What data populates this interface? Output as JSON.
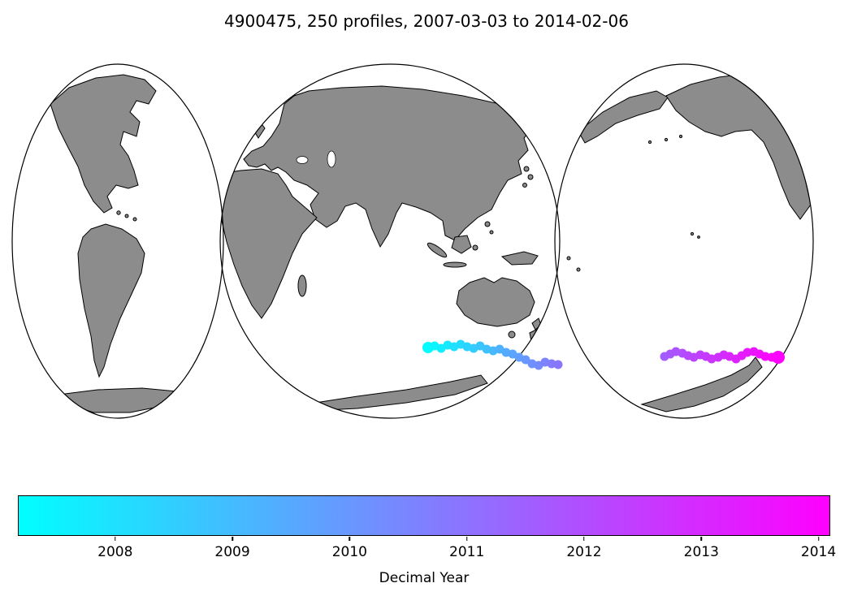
{
  "title": "4900475, 250 profiles, 2007-03-03 to 2014-02-06",
  "colors": {
    "land": "#8c8c8c",
    "coastline": "#000000",
    "cmap_start": "#00ffff",
    "cmap_end": "#ff00ff",
    "background": "#ffffff"
  },
  "chart_data": {
    "type": "scatter",
    "title": "4900475, 250 profiles, 2007-03-03 to 2014-02-06",
    "float_id": "4900475",
    "n_profiles": 250,
    "date_start": "2007-03-03",
    "date_end": "2014-02-06",
    "projection": "interrupted world map, 3 oval lobes, land gray on white ocean",
    "colormap": "cool (cyan to magenta)",
    "colorbar": {
      "label": "Decimal Year",
      "vmin": 2007.17,
      "vmax": 2014.1,
      "ticks": [
        2008,
        2009,
        2010,
        2011,
        2012,
        2013,
        2014
      ],
      "orientation": "horizontal"
    },
    "trajectory_region": "Southern Ocean, ~45-55S, moving eastward from south of Australia into the South Pacific",
    "trajectory_columns": [
      "x_px",
      "y_px",
      "decimal_year"
    ],
    "trajectory": [
      [
        527,
        428,
        2007.25
      ],
      [
        535,
        426,
        2007.43
      ],
      [
        543,
        429,
        2007.61
      ],
      [
        551,
        425,
        2007.8
      ],
      [
        559,
        427,
        2007.98
      ],
      [
        567,
        424,
        2008.16
      ],
      [
        575,
        427,
        2008.34
      ],
      [
        583,
        429,
        2008.53
      ],
      [
        591,
        426,
        2008.71
      ],
      [
        599,
        430,
        2008.89
      ],
      [
        607,
        432,
        2009.07
      ],
      [
        615,
        430,
        2009.26
      ],
      [
        623,
        434,
        2009.44
      ],
      [
        631,
        436,
        2009.62
      ],
      [
        639,
        440,
        2009.8
      ],
      [
        647,
        443,
        2009.99
      ],
      [
        655,
        448,
        2010.17
      ],
      [
        663,
        450,
        2010.35
      ],
      [
        671,
        446,
        2010.53
      ],
      [
        679,
        448,
        2010.72
      ],
      [
        687,
        449,
        2010.9
      ],
      [
        818,
        439,
        2011.6
      ],
      [
        825,
        436,
        2011.73
      ],
      [
        832,
        433,
        2011.86
      ],
      [
        840,
        435,
        2011.99
      ],
      [
        847,
        438,
        2012.12
      ],
      [
        854,
        440,
        2012.25
      ],
      [
        862,
        437,
        2012.38
      ],
      [
        869,
        439,
        2012.51
      ],
      [
        876,
        442,
        2012.65
      ],
      [
        884,
        440,
        2012.78
      ],
      [
        891,
        437,
        2012.91
      ],
      [
        898,
        439,
        2013.04
      ],
      [
        906,
        442,
        2013.17
      ],
      [
        913,
        438,
        2013.3
      ],
      [
        920,
        434,
        2013.43
      ],
      [
        928,
        433,
        2013.56
      ],
      [
        935,
        436,
        2013.69
      ],
      [
        942,
        439,
        2013.82
      ],
      [
        950,
        440,
        2013.95
      ],
      [
        958,
        440,
        2014.08
      ]
    ]
  }
}
